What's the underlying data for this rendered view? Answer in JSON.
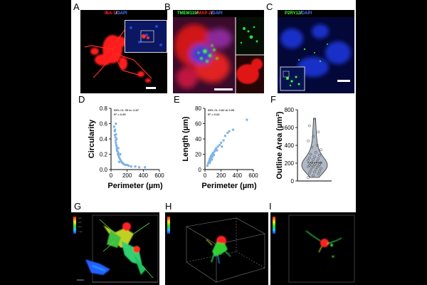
{
  "panels": {
    "A": {
      "letter": "A",
      "labels": [
        {
          "text": "IBA-1",
          "color": "#ff2a2a"
        },
        {
          "text": "/",
          "color": "#ffffff"
        },
        {
          "text": "DAPI",
          "color": "#4d7bff"
        }
      ]
    },
    "B": {
      "letter": "B",
      "labels": [
        {
          "text": "TMEM119",
          "color": "#3cff3c"
        },
        {
          "text": "/",
          "color": "#ffffff"
        },
        {
          "text": "MAP-2",
          "color": "#ff2a2a"
        },
        {
          "text": "/",
          "color": "#ffffff"
        },
        {
          "text": "DAPI",
          "color": "#4d7bff"
        }
      ]
    },
    "C": {
      "letter": "C",
      "labels": [
        {
          "text": "P2RY12",
          "color": "#3cff3c"
        },
        {
          "text": "/",
          "color": "#ffffff"
        },
        {
          "text": "DAPI",
          "color": "#4d7bff"
        }
      ]
    },
    "D": {
      "letter": "D"
    },
    "E": {
      "letter": "E"
    },
    "F": {
      "letter": "F"
    },
    "G": {
      "letter": "G"
    },
    "H": {
      "letter": "H"
    },
    "I": {
      "letter": "I"
    }
  },
  "chart_data": [
    {
      "panel": "D",
      "type": "scatter",
      "xlabel": "Perimeter (µm)",
      "ylabel": "Circularity",
      "xlim": [
        0,
        600
      ],
      "ylim": [
        0,
        0.8
      ],
      "xticks": [
        "0",
        "200",
        "400",
        "600"
      ],
      "yticks": [
        "0.0",
        "0.2",
        "0.4",
        "0.6",
        "0.8"
      ],
      "legend": {
        "line1": "95% CI: 95 to -0.87",
        "line2": "R² = 0.95"
      },
      "color": "#7fb2e5",
      "points": [
        [
          40,
          0.56
        ],
        [
          45,
          0.5
        ],
        [
          48,
          0.45
        ],
        [
          50,
          0.52
        ],
        [
          55,
          0.42
        ],
        [
          58,
          0.38
        ],
        [
          60,
          0.35
        ],
        [
          62,
          0.46
        ],
        [
          65,
          0.32
        ],
        [
          70,
          0.3
        ],
        [
          72,
          0.27
        ],
        [
          75,
          0.25
        ],
        [
          80,
          0.24
        ],
        [
          85,
          0.2
        ],
        [
          90,
          0.22
        ],
        [
          95,
          0.18
        ],
        [
          100,
          0.16
        ],
        [
          110,
          0.14
        ],
        [
          120,
          0.12
        ],
        [
          130,
          0.1
        ],
        [
          140,
          0.09
        ],
        [
          150,
          0.08
        ],
        [
          160,
          0.07
        ],
        [
          180,
          0.06
        ],
        [
          200,
          0.06
        ],
        [
          220,
          0.05
        ],
        [
          250,
          0.04
        ],
        [
          300,
          0.04
        ],
        [
          350,
          0.03
        ],
        [
          420,
          0.03
        ],
        [
          60,
          0.6
        ],
        [
          70,
          0.4
        ],
        [
          90,
          0.28
        ],
        [
          100,
          0.1
        ],
        [
          115,
          0.2
        ]
      ]
    },
    {
      "panel": "E",
      "type": "scatter",
      "xlabel": "Perimeter (µm)",
      "ylabel": "Length (µm)",
      "xlim": [
        0,
        600
      ],
      "ylim": [
        0,
        80
      ],
      "xticks": [
        "0",
        "200",
        "400",
        "600"
      ],
      "yticks": [
        "0",
        "20",
        "40",
        "60",
        "80"
      ],
      "legend": {
        "line1": "95% CI: 0.82 to 0.95",
        "line2": "R² = 0.82"
      },
      "color": "#7fb2e5",
      "points": [
        [
          30,
          5
        ],
        [
          40,
          8
        ],
        [
          50,
          10
        ],
        [
          55,
          12
        ],
        [
          60,
          14
        ],
        [
          65,
          11
        ],
        [
          70,
          16
        ],
        [
          75,
          18
        ],
        [
          80,
          15
        ],
        [
          90,
          20
        ],
        [
          100,
          22
        ],
        [
          110,
          19
        ],
        [
          120,
          24
        ],
        [
          130,
          26
        ],
        [
          140,
          28
        ],
        [
          150,
          25
        ],
        [
          160,
          30
        ],
        [
          180,
          32
        ],
        [
          200,
          35
        ],
        [
          210,
          30
        ],
        [
          230,
          38
        ],
        [
          250,
          44
        ],
        [
          280,
          48
        ],
        [
          300,
          50
        ],
        [
          350,
          52
        ],
        [
          520,
          65
        ],
        [
          60,
          9
        ],
        [
          85,
          13
        ],
        [
          95,
          17
        ],
        [
          105,
          21
        ]
      ]
    },
    {
      "panel": "F",
      "type": "violin",
      "ylabel": "Outline Area (µm²)",
      "ylim": [
        0,
        800
      ],
      "yticks": [
        "0",
        "200",
        "400",
        "600",
        "800"
      ],
      "color": "#b0b8c6",
      "values": [
        40,
        60,
        80,
        90,
        100,
        110,
        120,
        130,
        140,
        150,
        155,
        160,
        165,
        170,
        175,
        180,
        185,
        190,
        200,
        205,
        210,
        220,
        230,
        240,
        250,
        260,
        270,
        290,
        300,
        320,
        350,
        380,
        400,
        450,
        500,
        550,
        620,
        700
      ]
    }
  ]
}
